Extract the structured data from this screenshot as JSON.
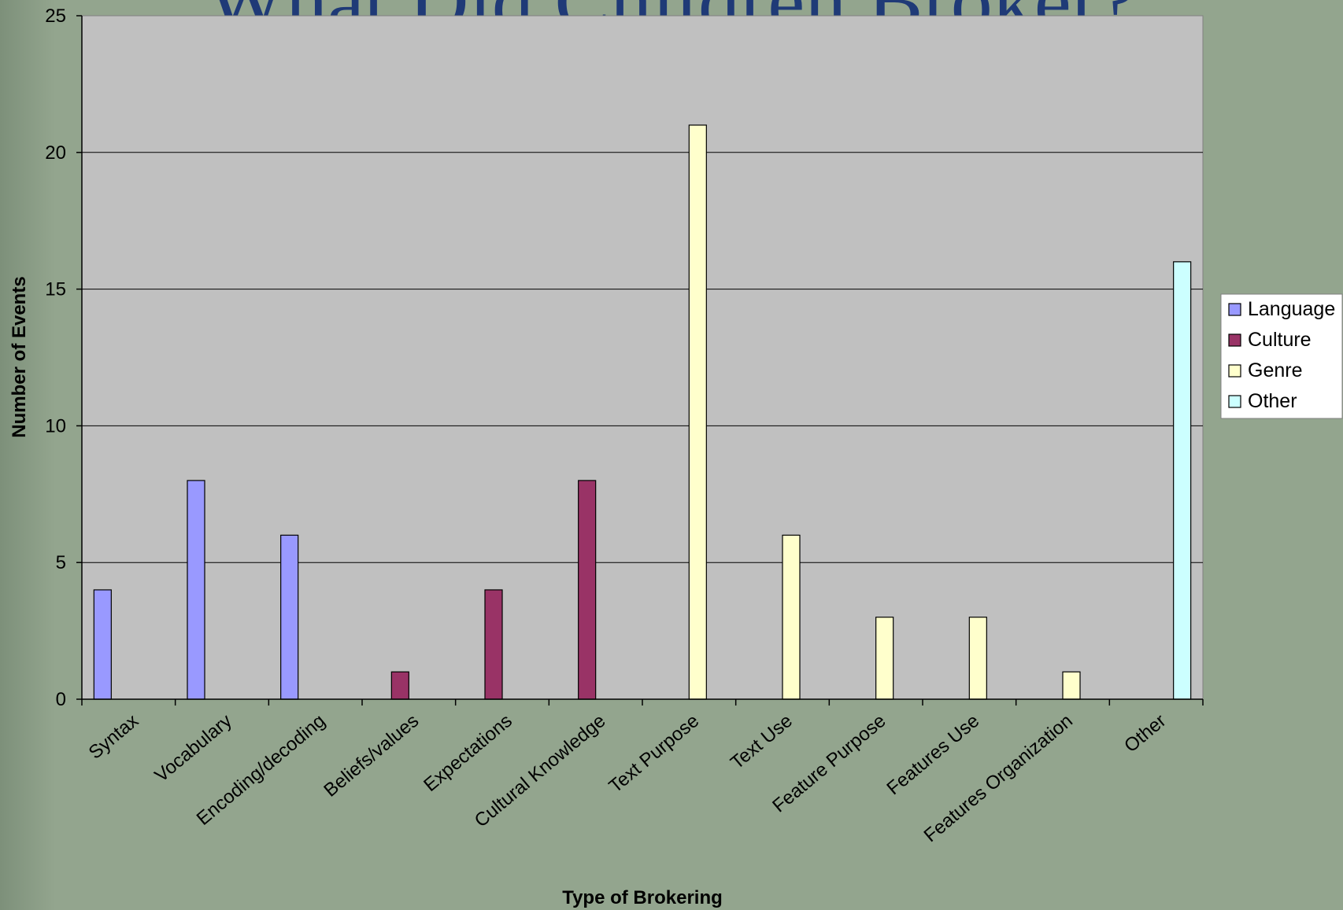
{
  "title": "What Did Children Broker?",
  "chart_data": {
    "type": "bar",
    "categories": [
      "Syntax",
      "Vocabulary",
      "Encoding/decoding",
      "Beliefs/values",
      "Expectations",
      "Cultural Knowledge",
      "Text Purpose",
      "Text Use",
      "Feature Purpose",
      "Features Use",
      "Features Organization",
      "Other"
    ],
    "series": [
      {
        "name": "Language",
        "color": "#9999ff",
        "values": [
          4,
          8,
          6,
          0,
          0,
          0,
          0,
          0,
          0,
          0,
          0,
          0
        ]
      },
      {
        "name": "Culture",
        "color": "#993366",
        "values": [
          0,
          0,
          0,
          1,
          4,
          8,
          0,
          0,
          0,
          0,
          0,
          0
        ]
      },
      {
        "name": "Genre",
        "color": "#ffffcc",
        "values": [
          0,
          0,
          0,
          0,
          0,
          0,
          21,
          6,
          3,
          3,
          1,
          0
        ]
      },
      {
        "name": "Other",
        "color": "#ccffff",
        "values": [
          0,
          0,
          0,
          0,
          0,
          0,
          0,
          0,
          0,
          0,
          0,
          16
        ]
      }
    ],
    "xlabel": "Type of Brokering",
    "ylabel": "Number of Events",
    "ylim": [
      0,
      25
    ],
    "yticks": [
      0,
      5,
      10,
      15,
      20,
      25
    ],
    "grid": true,
    "legend": "right",
    "plot_background": "#c0c0c0"
  }
}
